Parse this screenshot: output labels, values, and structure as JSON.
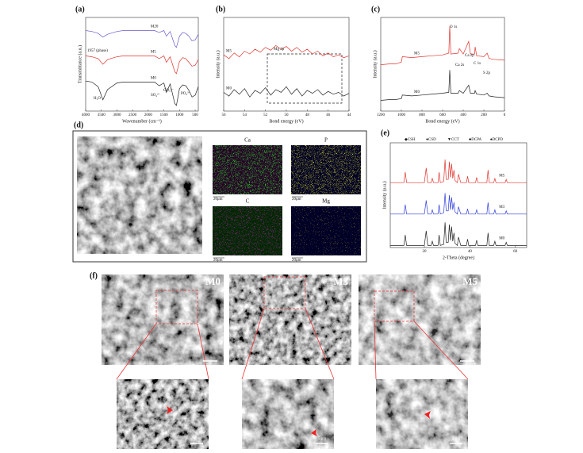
{
  "chart_data": [
    {
      "type": "line",
      "label": "(a)",
      "xlabel": "Wavenumber (cm⁻¹)",
      "ylabel": "Transmittance (a.u.)",
      "x": [
        4000,
        3800,
        3600,
        3450,
        3300,
        3000,
        2800,
        2500,
        2200,
        2000,
        1800,
        1650,
        1500,
        1420,
        1300,
        1150,
        1100,
        1000,
        900,
        800,
        700,
        600,
        500,
        400
      ],
      "xlim": [
        4000,
        400
      ],
      "xticks": [
        4000,
        3500,
        3000,
        2500,
        2000,
        1500,
        1000,
        500
      ],
      "ylim": [
        0,
        10
      ],
      "series": [
        {
          "name": "M20",
          "color": "#6a5acd",
          "values": [
            8.6,
            8.5,
            8.3,
            7.9,
            8.2,
            8.5,
            8.6,
            8.6,
            8.6,
            8.6,
            8.6,
            8.4,
            8.6,
            8.0,
            8.5,
            7.0,
            6.8,
            8.0,
            8.4,
            8.3,
            8.0,
            7.5,
            7.6,
            8.2
          ]
        },
        {
          "name": "M5",
          "color": "#e0342f",
          "values": [
            5.9,
            5.8,
            5.6,
            5.0,
            5.5,
            5.8,
            5.9,
            5.9,
            5.9,
            5.9,
            5.9,
            5.6,
            5.9,
            5.2,
            5.8,
            4.2,
            4.0,
            5.3,
            5.7,
            5.6,
            5.2,
            4.8,
            4.9,
            5.5
          ]
        },
        {
          "name": "M0",
          "color": "#222222",
          "values": [
            3.2,
            3.1,
            2.6,
            1.2,
            2.3,
            3.0,
            3.1,
            3.1,
            3.1,
            3.1,
            3.1,
            2.7,
            3.0,
            2.0,
            2.9,
            0.8,
            0.6,
            2.4,
            2.8,
            2.7,
            2.2,
            1.5,
            1.7,
            2.6
          ]
        }
      ],
      "annotations": [
        "1957 (phase)",
        "H₂O",
        "SO₄²⁻",
        "CO₃²⁻",
        "PO₄³⁻"
      ]
    },
    {
      "type": "line",
      "label": "(b)",
      "xlabel": "Bond energy (eV)",
      "ylabel": "Intensity (a.u.)",
      "x": [
        56,
        55.5,
        55,
        54.5,
        54,
        53.5,
        53,
        52.5,
        52,
        51.5,
        51,
        50.5,
        50,
        49.5,
        49,
        48.5,
        48,
        47.5,
        47,
        46.5,
        46,
        45.5,
        45,
        44.5,
        44
      ],
      "xlim": [
        56,
        44
      ],
      "xticks": [
        56,
        54,
        52,
        50,
        48,
        46,
        44
      ],
      "ylim": [
        0,
        10
      ],
      "series": [
        {
          "name": "M5",
          "color": "#e0342f",
          "values": [
            6.0,
            5.6,
            6.2,
            5.8,
            6.4,
            6.1,
            6.6,
            6.3,
            6.8,
            6.5,
            7.0,
            6.6,
            6.9,
            6.4,
            6.8,
            6.3,
            6.6,
            6.1,
            6.4,
            5.9,
            6.2,
            5.8,
            6.0,
            5.7,
            5.9
          ]
        },
        {
          "name": "M0",
          "color": "#222222",
          "values": [
            2.0,
            1.6,
            2.3,
            1.8,
            2.4,
            1.5,
            2.2,
            1.9,
            2.5,
            1.7,
            2.3,
            2.0,
            2.6,
            1.8,
            2.4,
            1.6,
            2.2,
            1.9,
            2.3,
            1.7,
            2.1,
            1.8,
            2.0,
            1.6,
            1.9
          ]
        }
      ],
      "annotations": [
        "Mg 2p"
      ]
    },
    {
      "type": "line",
      "label": "(c)",
      "xlabel": "Bond energy (eV)",
      "ylabel": "Intensity (a.u.)",
      "x": [
        1200,
        1100,
        1050,
        1000,
        990,
        900,
        800,
        700,
        600,
        540,
        531,
        520,
        450,
        438,
        400,
        347,
        330,
        290,
        285,
        270,
        200,
        168,
        150,
        100,
        0
      ],
      "xlim": [
        1200,
        0
      ],
      "xticks": [
        1200,
        1000,
        800,
        600,
        400,
        200,
        0
      ],
      "ylim": [
        0,
        10.5
      ],
      "series": [
        {
          "name": "M5",
          "color": "#e0342f",
          "values": [
            5.2,
            5.3,
            5.3,
            5.5,
            6.1,
            6.0,
            6.1,
            6.2,
            6.3,
            6.5,
            9.5,
            6.4,
            6.5,
            7.0,
            6.4,
            7.8,
            6.4,
            6.4,
            7.2,
            6.2,
            6.1,
            6.5,
            5.9,
            5.8,
            5.7
          ]
        },
        {
          "name": "M0",
          "color": "#222222",
          "values": [
            1.2,
            1.3,
            1.3,
            1.4,
            1.8,
            1.7,
            1.8,
            1.9,
            2.0,
            2.1,
            4.6,
            2.0,
            2.0,
            2.3,
            2.0,
            2.9,
            2.0,
            2.0,
            2.3,
            1.9,
            1.8,
            2.0,
            1.7,
            1.6,
            1.5
          ]
        }
      ],
      "annotations": [
        "O 1s",
        "Ca 2p",
        "Ca 2s",
        "C 1s",
        "S 2p"
      ]
    },
    {
      "type": "line",
      "label": "(e)",
      "xlabel": "2-Theta (degree)",
      "ylabel": "Intensity (a.u.)",
      "legend": [
        "◆CSH",
        "●CSD",
        "▼CCT",
        "♣DCPA",
        "♠DCPD"
      ],
      "x": [
        5,
        11,
        11.6,
        12.2,
        20,
        20.8,
        21.5,
        23,
        23.5,
        24,
        26,
        26.5,
        27,
        28.5,
        29.1,
        29.6,
        30.5,
        31,
        31.5,
        32,
        32.5,
        33,
        33.5,
        34.5,
        35,
        36,
        38.5,
        39,
        39.5,
        42.5,
        43,
        43.5,
        47.5,
        48,
        48.5,
        50.5,
        51,
        51.5,
        55.5,
        56,
        56.5,
        65
      ],
      "xlim": [
        5,
        65
      ],
      "xticks": [
        20,
        40,
        60
      ],
      "ylim": [
        0,
        100
      ],
      "series": [
        {
          "name": "M5",
          "color": "#e0342f",
          "values": [
            62,
            62,
            72,
            62,
            62,
            76,
            62,
            62,
            66,
            62,
            62,
            72,
            62,
            63,
            84,
            65,
            65,
            82,
            67,
            80,
            66,
            74,
            64,
            62,
            70,
            62,
            62,
            68,
            62,
            62,
            67,
            62,
            62,
            74,
            62,
            62,
            66,
            62,
            62,
            65,
            62,
            62
          ]
        },
        {
          "name": "M3",
          "color": "#3340d8",
          "values": [
            32,
            32,
            41,
            32,
            32,
            45,
            32,
            32,
            36,
            32,
            32,
            41,
            32,
            33,
            52,
            35,
            35,
            50,
            36,
            48,
            36,
            43,
            34,
            32,
            39,
            32,
            32,
            37,
            32,
            32,
            36,
            32,
            32,
            43,
            32,
            32,
            36,
            32,
            32,
            35,
            32,
            32
          ]
        },
        {
          "name": "M0",
          "color": "#222222",
          "values": [
            2,
            2,
            12,
            2,
            2,
            16,
            2,
            2,
            6,
            2,
            2,
            12,
            2,
            3,
            24,
            5,
            5,
            22,
            7,
            20,
            6,
            14,
            4,
            2,
            10,
            2,
            2,
            8,
            2,
            2,
            7,
            2,
            2,
            14,
            2,
            2,
            6,
            2,
            2,
            5,
            2,
            2
          ]
        }
      ]
    }
  ],
  "figure_d": {
    "label": "(d)",
    "maps": [
      "Ca",
      "P",
      "C",
      "Mg"
    ],
    "scale_bar": "20μm"
  },
  "figure_f": {
    "label": "(f)",
    "samples": [
      "M0",
      "M3",
      "M5"
    ],
    "scale_bar": "5 μm"
  }
}
